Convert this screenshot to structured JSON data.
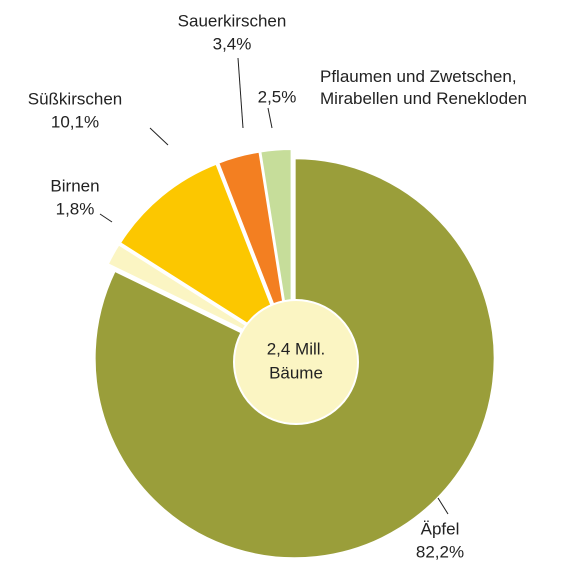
{
  "chart_data": {
    "type": "pie",
    "categories": [
      "Äpfel",
      "Birnen",
      "Süßkirschen",
      "Sauerkirschen",
      "Pflaumen und Zwetschen,\nMirabellen und Renekloden"
    ],
    "values": [
      82.2,
      1.8,
      10.1,
      3.4,
      2.5
    ],
    "value_labels": [
      "82,2%",
      "1,8%",
      "10,1%",
      "3,4%",
      "2,5%"
    ],
    "colors": [
      "#9a9e3a",
      "#fbf5c3",
      "#fcc700",
      "#f37f21",
      "#c6dd9a"
    ],
    "center_label": [
      "2,4 Mill.",
      "Bäume"
    ]
  }
}
